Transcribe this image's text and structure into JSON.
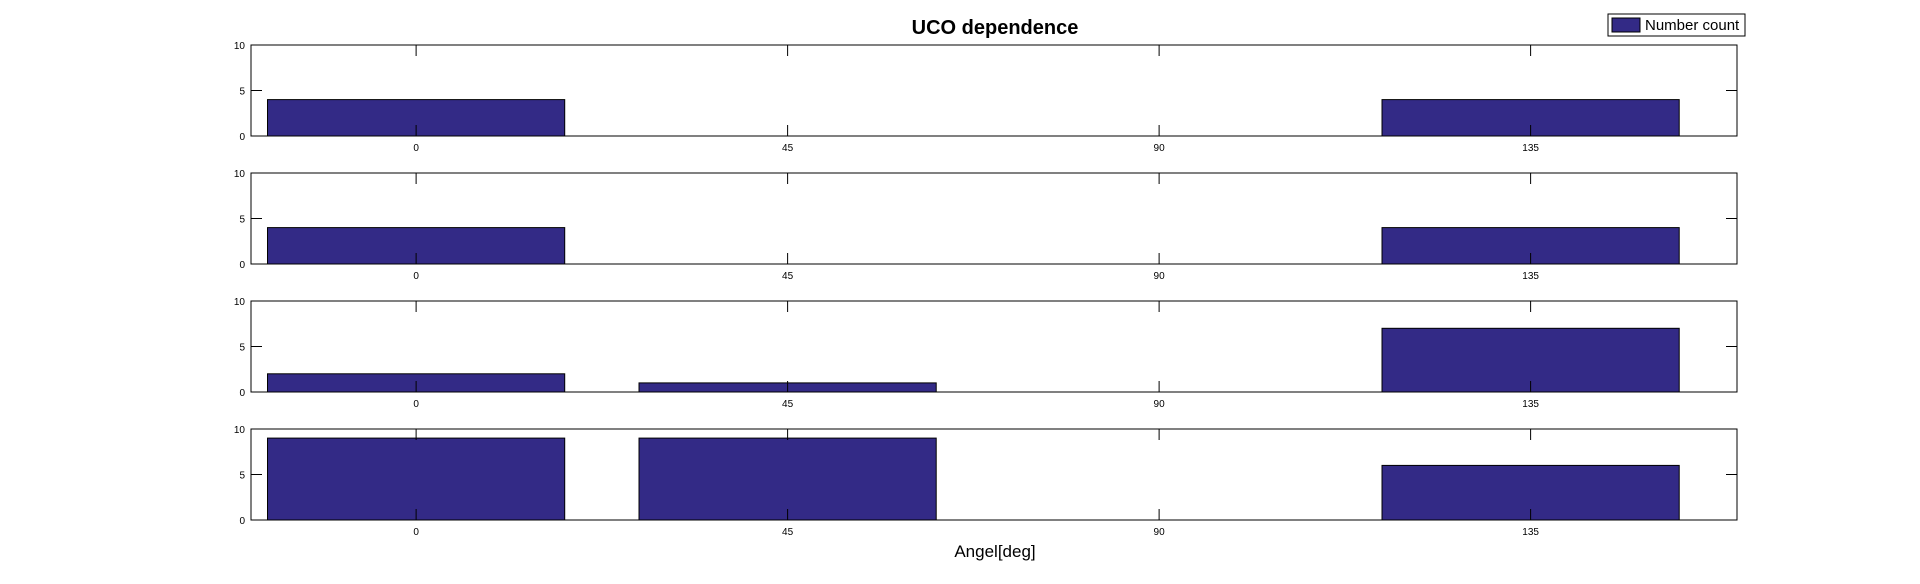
{
  "chart_data": {
    "type": "bar",
    "title": "UCO dependence",
    "xlabel": "Angel[deg]",
    "ylabel": "",
    "legend": {
      "entries": [
        "Number count"
      ],
      "placement": "top-right"
    },
    "color": "#332a86",
    "x_ticks": [
      "0",
      "45",
      "90",
      "135"
    ],
    "xlim": [
      -20,
      160
    ],
    "bar_width": 36,
    "grid": false,
    "subplots": [
      {
        "ylim": [
          0,
          10
        ],
        "y_ticks": [
          "0",
          "5",
          "10"
        ],
        "x": [
          0,
          45,
          90,
          135
        ],
        "values": [
          4,
          0,
          0,
          4
        ]
      },
      {
        "ylim": [
          0,
          10
        ],
        "y_ticks": [
          "0",
          "5",
          "10"
        ],
        "x": [
          0,
          45,
          90,
          135
        ],
        "values": [
          4,
          0,
          0,
          4
        ]
      },
      {
        "ylim": [
          0,
          10
        ],
        "y_ticks": [
          "0",
          "5",
          "10"
        ],
        "x": [
          0,
          45,
          90,
          135
        ],
        "values": [
          2,
          1,
          0,
          7
        ]
      },
      {
        "ylim": [
          0,
          10
        ],
        "y_ticks": [
          "0",
          "5",
          "10"
        ],
        "x": [
          0,
          45,
          90,
          135
        ],
        "values": [
          9,
          9,
          0,
          6
        ]
      }
    ]
  }
}
